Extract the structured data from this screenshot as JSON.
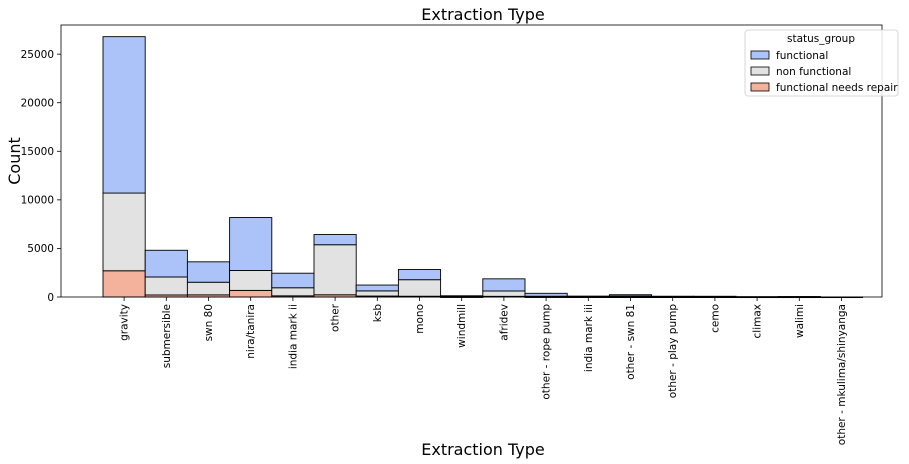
{
  "chart_data": {
    "type": "bar",
    "stacked": true,
    "title": "Extraction Type",
    "xlabel": "Extraction Type",
    "ylabel": "Count",
    "ylim": [
      0,
      28000
    ],
    "yticks": [
      0,
      5000,
      10000,
      15000,
      20000,
      25000
    ],
    "grid": false,
    "legend": {
      "title": "status_group",
      "placement": "top-right"
    },
    "categories": [
      "gravity",
      "submersible",
      "swn 80",
      "nira/tanira",
      "india mark ii",
      "other",
      "ksb",
      "mono",
      "windmill",
      "afridev",
      "other - rope pump",
      "india mark iii",
      "other - swn 81",
      "other - play pump",
      "cemo",
      "climax",
      "walimi",
      "other - mkulima/shinyanga"
    ],
    "series": [
      {
        "name": "functional",
        "color": "#abc3f8",
        "values": [
          16100,
          2750,
          2100,
          5450,
          1500,
          1050,
          600,
          1050,
          70,
          1250,
          300,
          45,
          130,
          45,
          40,
          10,
          20,
          2
        ]
      },
      {
        "name": "non functional",
        "color": "#e2e2e2",
        "values": [
          8000,
          1850,
          1300,
          2050,
          830,
          5150,
          530,
          1700,
          45,
          550,
          70,
          40,
          100,
          30,
          30,
          20,
          25,
          0
        ]
      },
      {
        "name": "functional needs repair",
        "color": "#f4b29c",
        "values": [
          2700,
          210,
          220,
          680,
          120,
          230,
          100,
          80,
          12,
          70,
          10,
          8,
          5,
          5,
          5,
          2,
          2,
          0
        ]
      }
    ]
  }
}
